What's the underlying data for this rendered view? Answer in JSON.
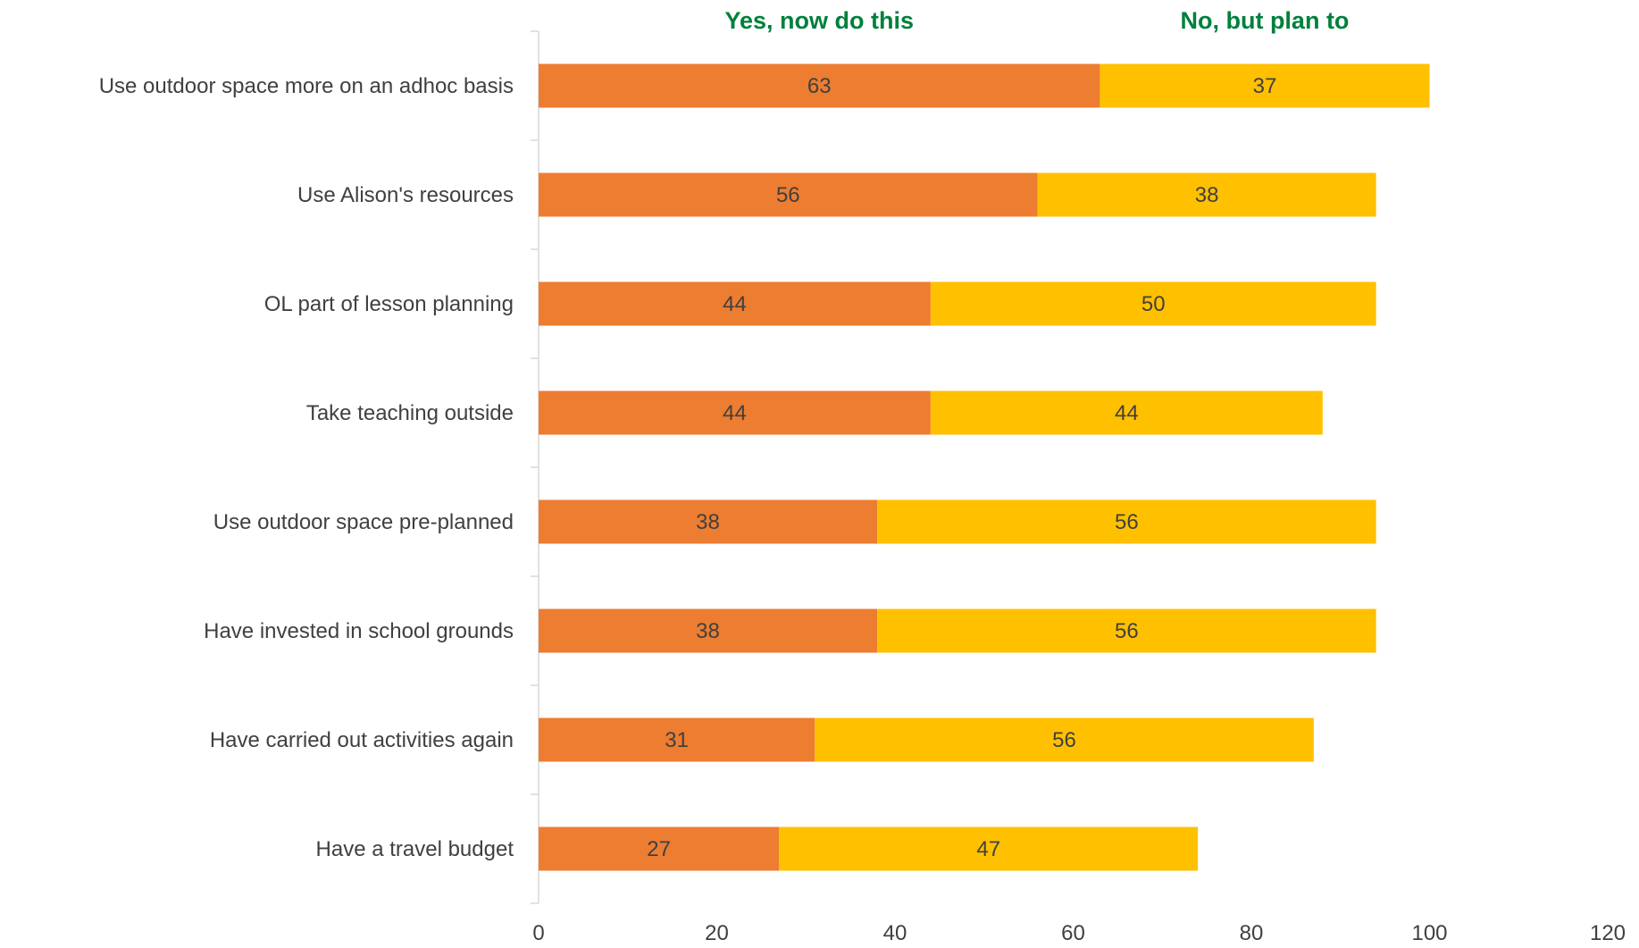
{
  "chart_data": {
    "type": "bar",
    "orientation": "horizontal",
    "stacked": true,
    "categories": [
      "Use outdoor space more on an adhoc basis",
      "Use Alison's resources",
      "OL part of lesson planning",
      "Take teaching outside",
      "Use outdoor space pre-planned",
      "Have invested in school grounds",
      "Have carried out activities again",
      "Have a travel budget"
    ],
    "series": [
      {
        "name": "Yes, now do this",
        "color": "#ED7D31",
        "values": [
          63,
          56,
          44,
          44,
          38,
          38,
          31,
          27
        ]
      },
      {
        "name": "No, but plan to",
        "color": "#FFC000",
        "values": [
          37,
          38,
          50,
          44,
          56,
          56,
          56,
          47
        ]
      }
    ],
    "xlim": [
      0,
      120
    ],
    "x_ticks": [
      "0",
      "20",
      "40",
      "60",
      "80",
      "100",
      "120"
    ],
    "grid": false,
    "legend_color": "#00803C",
    "axis_color": "#D9D9D9",
    "label_color": "#404040"
  }
}
